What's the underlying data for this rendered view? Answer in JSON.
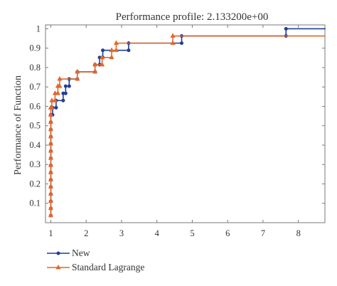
{
  "chart_data": {
    "type": "line",
    "title": "Performance profile: 2.133200e+00",
    "xlabel": "",
    "ylabel": "Performance of Function",
    "xlim": [
      0.85,
      8.75
    ],
    "ylim": [
      0,
      1.02
    ],
    "xticks": [
      1,
      2,
      3,
      4,
      5,
      6,
      7,
      8
    ],
    "xtick_labels": [
      "1",
      "2",
      "3",
      "4",
      "5",
      "6",
      "7",
      "8"
    ],
    "yticks": [
      0.1,
      0.2,
      0.3,
      0.4,
      0.5,
      0.6,
      0.7,
      0.8,
      0.9,
      1
    ],
    "ytick_labels": [
      "0.1",
      "0.2",
      "0.3",
      "0.4",
      "0.5",
      "0.6",
      "0.7",
      "0.8",
      "0.9",
      "1"
    ],
    "grid": false,
    "legend_position": "below-left",
    "series": [
      {
        "name": "New",
        "color": "#1f3f95",
        "marker": "dot",
        "x": [
          1,
          1,
          1,
          1,
          1,
          1,
          1,
          1,
          1,
          1,
          1,
          1,
          1,
          1,
          1,
          1,
          1,
          1,
          1.05,
          1.05,
          1.15,
          1.15,
          1.35,
          1.35,
          1.42,
          1.42,
          1.52,
          1.52,
          1.75,
          1.75,
          2.25,
          2.25,
          2.38,
          2.38,
          2.47,
          2.47,
          3.2,
          3.2,
          4.7,
          4.7,
          7.65,
          7.65,
          8.75
        ],
        "y": [
          0.037,
          0.074,
          0.111,
          0.148,
          0.185,
          0.222,
          0.259,
          0.296,
          0.333,
          0.37,
          0.407,
          0.444,
          0.481,
          0.519,
          0.556,
          0.556,
          0.556,
          0.556,
          0.556,
          0.593,
          0.593,
          0.63,
          0.63,
          0.667,
          0.667,
          0.704,
          0.704,
          0.741,
          0.741,
          0.778,
          0.778,
          0.815,
          0.815,
          0.852,
          0.852,
          0.889,
          0.889,
          0.926,
          0.926,
          0.963,
          0.963,
          1.0,
          1.0
        ]
      },
      {
        "name": "Standard Lagrange",
        "color": "#e0682d",
        "marker": "triangle",
        "x": [
          1,
          1,
          1,
          1,
          1,
          1,
          1,
          1,
          1,
          1,
          1,
          1,
          1,
          1,
          1,
          1,
          1,
          1.03,
          1.03,
          1.12,
          1.12,
          1.2,
          1.2,
          1.25,
          1.25,
          1.75,
          1.75,
          2.25,
          2.25,
          2.45,
          2.45,
          2.72,
          2.72,
          2.85,
          2.85,
          4.45,
          4.45,
          8.75
        ],
        "y": [
          0.037,
          0.074,
          0.111,
          0.148,
          0.185,
          0.222,
          0.259,
          0.296,
          0.333,
          0.37,
          0.407,
          0.444,
          0.481,
          0.519,
          0.556,
          0.593,
          0.593,
          0.593,
          0.63,
          0.63,
          0.667,
          0.667,
          0.704,
          0.704,
          0.741,
          0.741,
          0.778,
          0.778,
          0.815,
          0.815,
          0.852,
          0.852,
          0.889,
          0.889,
          0.926,
          0.926,
          0.963,
          0.963
        ]
      }
    ]
  }
}
